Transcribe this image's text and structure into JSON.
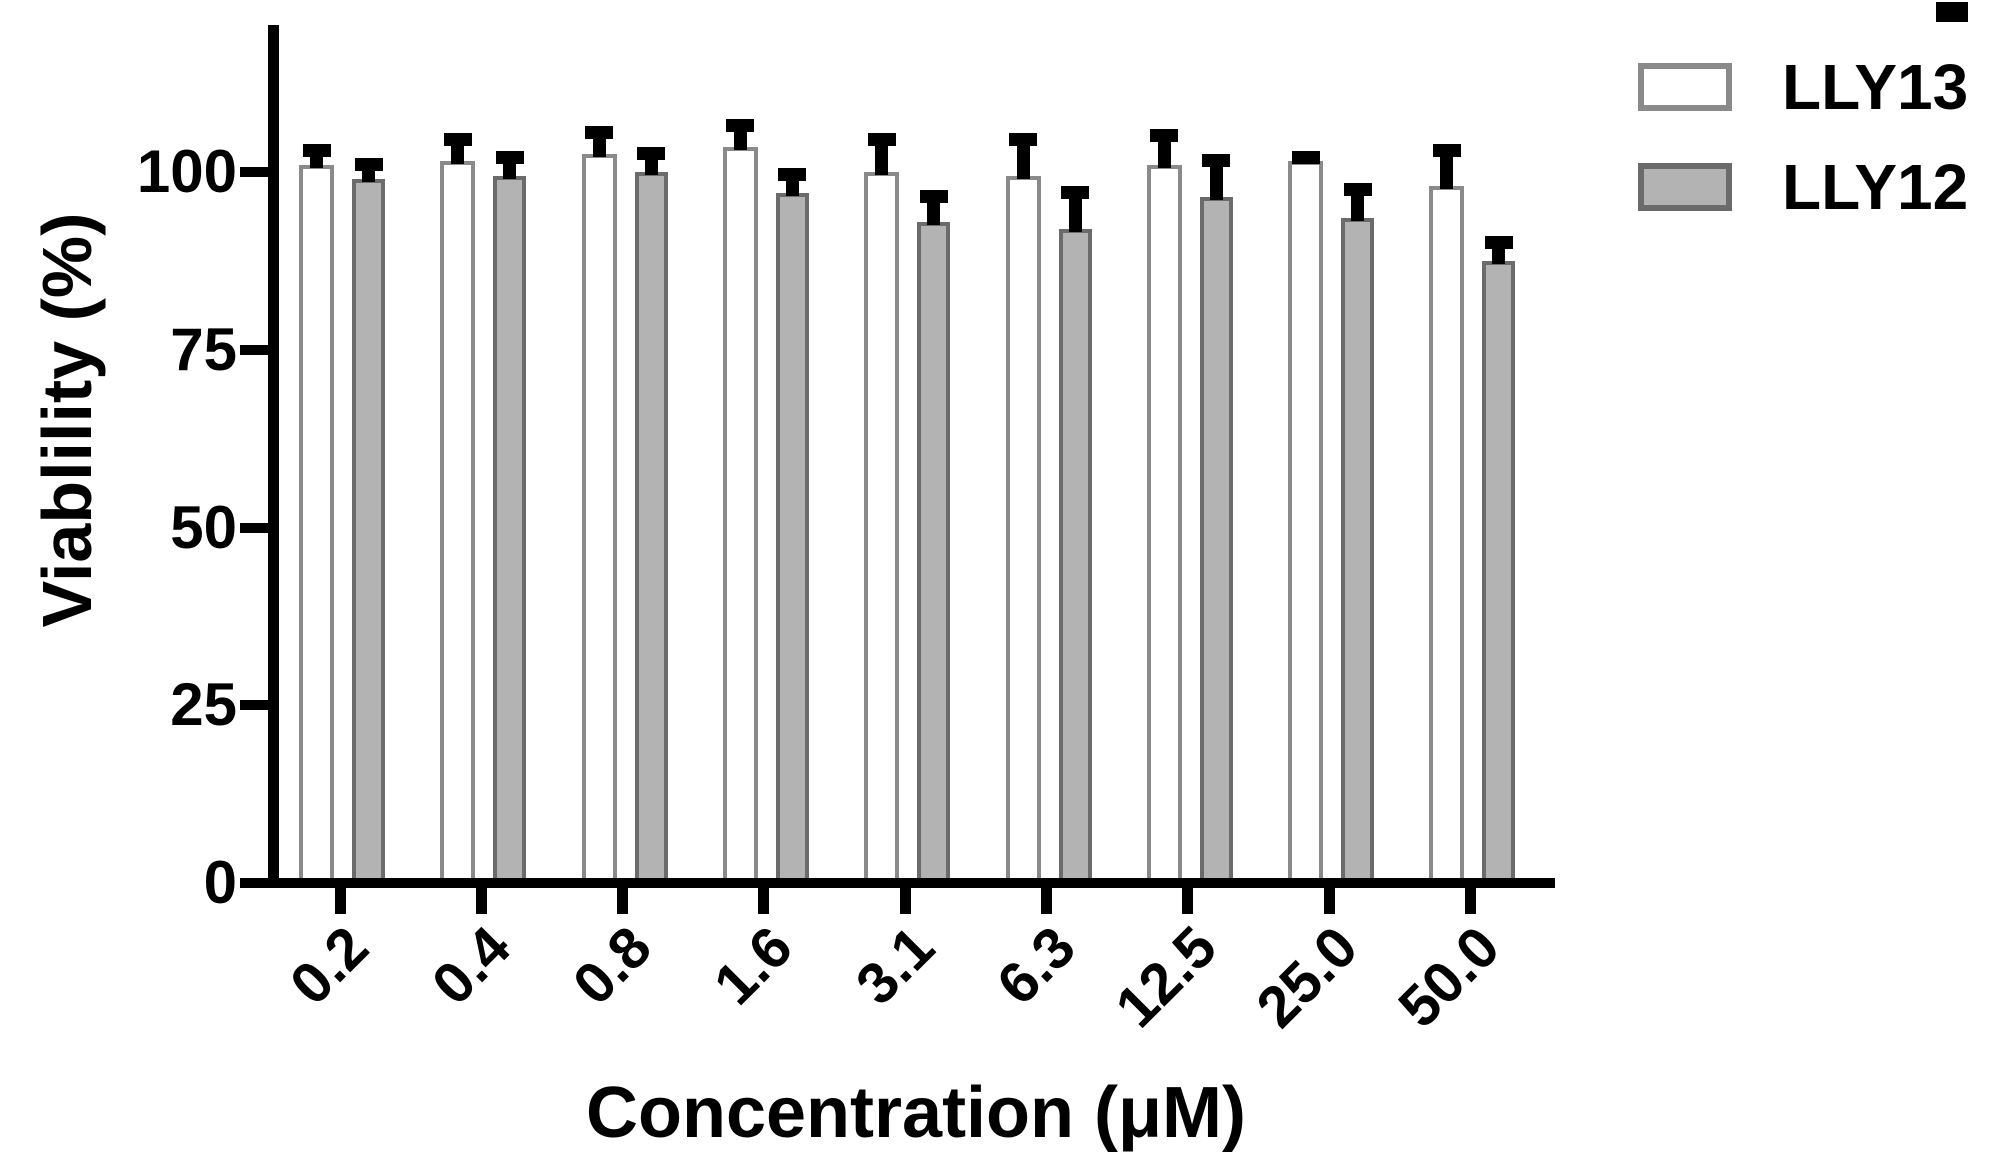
{
  "figure_title": "Cell viability bar chart",
  "chart_data": {
    "type": "bar",
    "title": "",
    "categories": [
      "0.2",
      "0.4",
      "0.8",
      "1.6",
      "3.1",
      "6.3",
      "12.5",
      "25.0",
      "50.0"
    ],
    "series": [
      {
        "name": "LLY13",
        "values": [
          101,
          101.5,
          102.5,
          103.5,
          100,
          99.5,
          101,
          101.5,
          98
        ],
        "errors_plus": [
          3,
          4,
          4,
          4,
          5.5,
          6,
          5,
          1.5,
          6
        ],
        "fill": "#ffffff",
        "border": "#8a8a8a"
      },
      {
        "name": "LLY12",
        "values": [
          99,
          99.5,
          100,
          97,
          93,
          92,
          96.5,
          93.5,
          87.5
        ],
        "errors_plus": [
          3,
          3.5,
          3.5,
          3.5,
          4.5,
          6,
          6,
          5,
          3.5
        ],
        "fill": "#b3b3b3",
        "border": "#6b6b6b"
      }
    ],
    "xlabel": "Concentration (μM)",
    "ylabel": "Viablility (%)",
    "ylim": [
      0,
      120
    ],
    "yticks": [
      0,
      25,
      50,
      75,
      100
    ],
    "grid": false,
    "legend_position": "top-right",
    "error_bars": "upper with cap",
    "error_bar_color": "#000000",
    "axis_color": "#000000"
  }
}
